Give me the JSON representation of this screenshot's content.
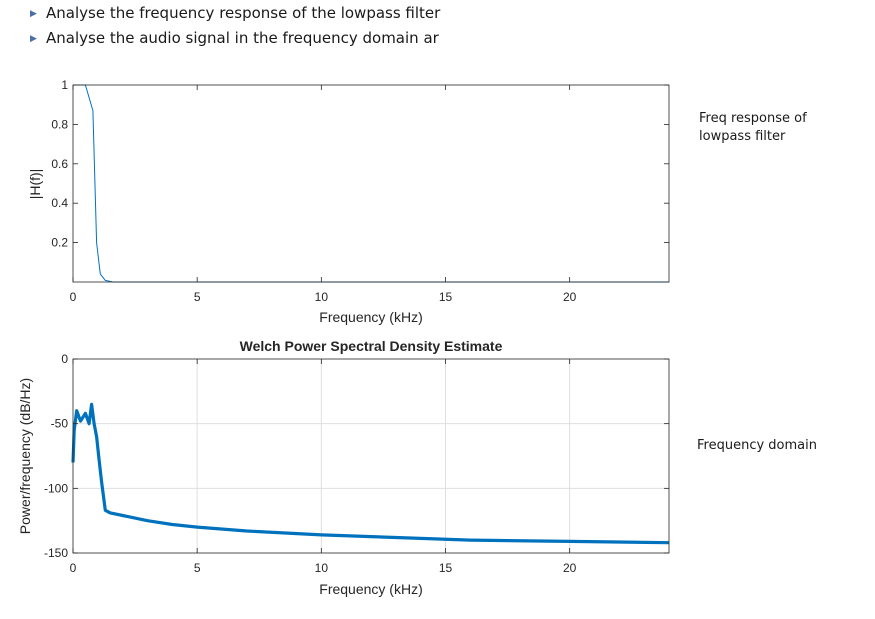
{
  "bullets": [
    {
      "icon": "triangle-bullet-icon",
      "text": "Analyse the frequency response of the lowpass filter"
    },
    {
      "icon": "triangle-bullet-icon",
      "text": "Analyse the audio signal in the frequency domain ar"
    }
  ],
  "notes": {
    "note1": "Freq response of lowpass filter",
    "note2": "Frequency domain"
  },
  "colors": {
    "line": "#0072BD",
    "axis": "#262626",
    "grid": "#dfdfdf"
  },
  "chart_data": [
    {
      "type": "line",
      "title": "",
      "xlabel": "Frequency (kHz)",
      "ylabel": "|H(f)|",
      "xlim": [
        0,
        24
      ],
      "ylim": [
        0,
        1
      ],
      "xticks": [
        0,
        5,
        10,
        15,
        20
      ],
      "yticks": [
        0.2,
        0.4,
        0.6,
        0.8,
        1
      ],
      "grid": false,
      "series": [
        {
          "x": [
            0,
            0.2,
            0.5,
            0.8,
            0.95,
            1.1,
            1.3,
            1.6,
            2.0,
            24
          ],
          "y": [
            1.0,
            1.0,
            1.0,
            0.87,
            0.2,
            0.04,
            0.008,
            0.0,
            0.0,
            0.0
          ]
        }
      ]
    },
    {
      "type": "line",
      "title": "Welch Power Spectral Density Estimate",
      "xlabel": "Frequency (kHz)",
      "ylabel": "Power/frequency (dB/Hz)",
      "xlim": [
        0,
        24
      ],
      "ylim": [
        -150,
        0
      ],
      "xticks": [
        0,
        5,
        10,
        15,
        20
      ],
      "yticks": [
        -150,
        -100,
        -50,
        0
      ],
      "grid": true,
      "series": [
        {
          "x": [
            0,
            0.05,
            0.15,
            0.3,
            0.5,
            0.65,
            0.75,
            0.85,
            0.95,
            1.05,
            1.15,
            1.3,
            1.5,
            2,
            3,
            4,
            5,
            7,
            10,
            13,
            16,
            20,
            24
          ],
          "y": [
            -80,
            -55,
            -40,
            -48,
            -42,
            -50,
            -35,
            -50,
            -60,
            -78,
            -95,
            -117,
            -119,
            -121,
            -125,
            -128,
            -130,
            -133,
            -136,
            -138,
            -140,
            -141,
            -142
          ]
        }
      ]
    }
  ]
}
